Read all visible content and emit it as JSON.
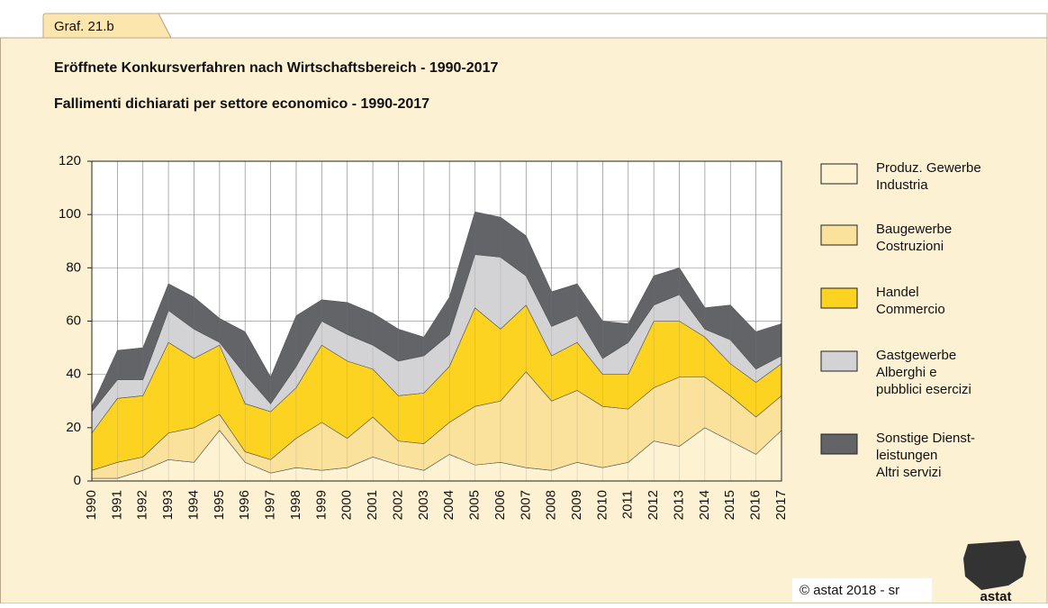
{
  "tab": "Graf. 21.b",
  "footer": "© astat 2018 - sr",
  "logo": "astat",
  "chart_data": {
    "type": "stacked_area",
    "title": "Eröffnete Konkursverfahren nach Wirtschaftsbereich - 1990-2017",
    "subtitle": "Fallimenti dichiarati per settore economico - 1990-2017",
    "categories": [
      "1990",
      "1991",
      "1992",
      "1993",
      "1994",
      "1995",
      "1996",
      "1997",
      "1998",
      "1999",
      "2000",
      "2001",
      "2002",
      "2003",
      "2004",
      "2005",
      "2006",
      "2007",
      "2008",
      "2009",
      "2010",
      "2011",
      "2012",
      "2013",
      "2014",
      "2015",
      "2016",
      "2017"
    ],
    "ylim": [
      0,
      120
    ],
    "yticks": [
      0,
      20,
      40,
      60,
      80,
      100,
      120
    ],
    "grid": true,
    "legend": "right",
    "series": [
      {
        "name": "Produz. Gewerbe\nIndustria",
        "color": "#fdf3d2",
        "values": [
          1,
          1,
          4,
          8,
          7,
          19,
          7,
          3,
          5,
          4,
          5,
          9,
          6,
          4,
          10,
          6,
          7,
          5,
          4,
          7,
          5,
          7,
          15,
          13,
          20,
          15,
          10,
          19
        ]
      },
      {
        "name": "Baugewerbe\nCostruzioni",
        "color": "#fbe29c",
        "values": [
          3,
          6,
          5,
          10,
          13,
          6,
          4,
          5,
          11,
          18,
          11,
          15,
          9,
          10,
          12,
          22,
          23,
          36,
          26,
          27,
          23,
          20,
          20,
          26,
          19,
          17,
          14,
          13
        ]
      },
      {
        "name": "Handel\nCommercio",
        "color": "#fdd322",
        "values": [
          14,
          24,
          23,
          34,
          26,
          26,
          18,
          18,
          19,
          29,
          29,
          18,
          17,
          19,
          21,
          37,
          27,
          25,
          17,
          18,
          12,
          13,
          25,
          21,
          15,
          12,
          13,
          12
        ]
      },
      {
        "name": "Gastgewerbe\nAlberghi e\npubblici esercizi",
        "color": "#d3d3d6",
        "values": [
          8,
          7,
          6,
          12,
          11,
          1,
          11,
          3,
          8,
          9,
          10,
          9,
          13,
          14,
          12,
          20,
          27,
          11,
          11,
          10,
          6,
          12,
          6,
          10,
          3,
          9,
          5,
          3
        ]
      },
      {
        "name": "Sonstige Dienst-\nleistungen\nAltri servizi",
        "color": "#636468",
        "values": [
          2,
          11,
          12,
          10,
          12,
          9,
          16,
          10,
          19,
          8,
          12,
          12,
          12,
          7,
          14,
          16,
          15,
          15,
          13,
          12,
          14,
          7,
          11,
          10,
          8,
          13,
          14,
          12
        ]
      }
    ]
  }
}
